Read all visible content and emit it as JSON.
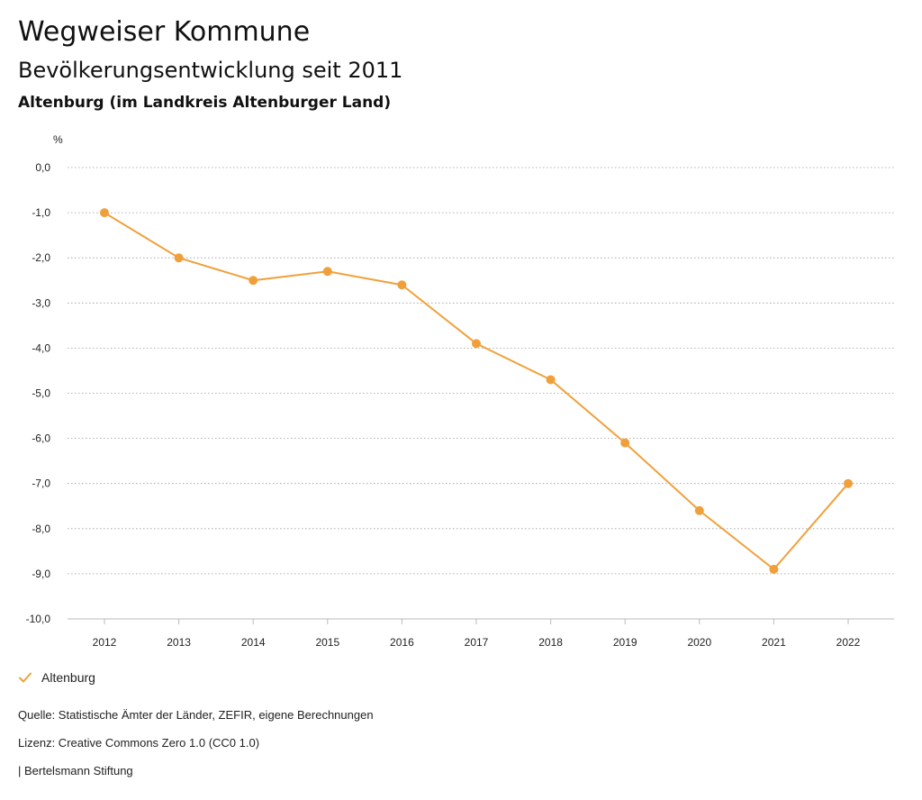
{
  "header": {
    "title": "Wegweiser Kommune",
    "subtitle": "Bevölkerungsentwicklung seit 2011",
    "region": "Altenburg (im Landkreis Altenburger Land)"
  },
  "chart_data": {
    "type": "line",
    "unit": "%",
    "x": [
      "2012",
      "2013",
      "2014",
      "2015",
      "2016",
      "2017",
      "2018",
      "2019",
      "2020",
      "2021",
      "2022"
    ],
    "series": [
      {
        "name": "Altenburg",
        "color": "#f0a03a",
        "values": [
          -1.0,
          -2.0,
          -2.5,
          -2.3,
          -2.6,
          -3.9,
          -4.7,
          -6.1,
          -7.6,
          -8.9,
          -7.0
        ]
      }
    ],
    "ylim": [
      -10,
      0
    ],
    "yticks": [
      0,
      -1,
      -2,
      -3,
      -4,
      -5,
      -6,
      -7,
      -8,
      -9,
      -10
    ],
    "ytick_labels": [
      "0,0",
      "-1,0",
      "-2,0",
      "-3,0",
      "-4,0",
      "-5,0",
      "-6,0",
      "-7,0",
      "-8,0",
      "-9,0",
      "-10,0"
    ],
    "grid": true,
    "legend": "bottom-left"
  },
  "legend": {
    "label": "Altenburg",
    "icon": "check-icon"
  },
  "footer": {
    "source": "Quelle: Statistische Ämter der Länder, ZEFIR, eigene Berechnungen",
    "license": "Lizenz: Creative Commons Zero 1.0 (CC0 1.0)",
    "brand": "| Bertelsmann Stiftung"
  }
}
